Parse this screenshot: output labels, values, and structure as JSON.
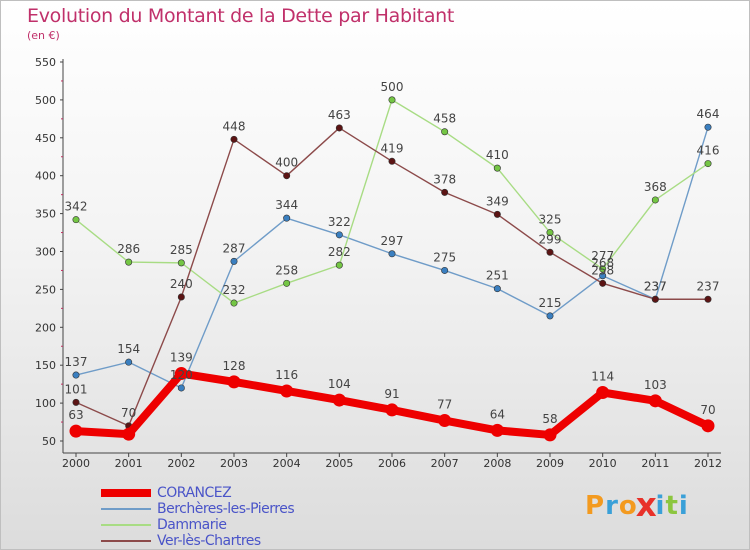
{
  "title": "Evolution du Montant de la Dette par Habitant",
  "unit": "(en €)",
  "logo": {
    "text": "Proxiti",
    "colors": [
      "#f39a1f",
      "#3aa0d8",
      "#f39a1f",
      "#e8312a",
      "#3aa0d8",
      "#8cc63f",
      "#3aa0d8"
    ]
  },
  "chart_data": {
    "type": "line",
    "x": [
      "2000",
      "2001",
      "2002",
      "2003",
      "2004",
      "2005",
      "2006",
      "2007",
      "2008",
      "2009",
      "2010",
      "2011",
      "2012"
    ],
    "ylim": [
      50,
      550
    ],
    "yticks": [
      50,
      100,
      150,
      200,
      250,
      300,
      350,
      400,
      450,
      500,
      550
    ],
    "grid": false,
    "legend_position": "bottom-left",
    "series": [
      {
        "name": "Berchères-les-Pierres",
        "color": "#6f9cc8",
        "marker": "#3a7fc0",
        "values": [
          137,
          154,
          120,
          287,
          344,
          322,
          297,
          275,
          251,
          215,
          268,
          237,
          464
        ],
        "labels": [
          "137",
          "154",
          "120",
          "287",
          "344",
          "322",
          "297",
          "275",
          "251",
          "215",
          "268",
          "237",
          "464"
        ]
      },
      {
        "name": "Dammarie",
        "color": "#a8dc84",
        "marker": "#74c644",
        "values": [
          342,
          286,
          285,
          232,
          258,
          282,
          500,
          458,
          410,
          325,
          277,
          368,
          416
        ],
        "labels": [
          "342",
          "286",
          "285",
          "232",
          "258",
          "282",
          "500",
          "458",
          "410",
          "325",
          "277",
          "368",
          "416"
        ]
      },
      {
        "name": "Ver-lès-Chartres",
        "color": "#8c4a4a",
        "marker": "#5c1414",
        "values": [
          101,
          70,
          240,
          448,
          400,
          463,
          419,
          378,
          349,
          299,
          258,
          237,
          237
        ],
        "labels": [
          "101",
          "70",
          "240",
          "448",
          "400",
          "463",
          "419",
          "378",
          "349",
          "299",
          "258",
          "237",
          "237"
        ]
      },
      {
        "name": "CORANCEZ",
        "color": "#ee0000",
        "marker": "#ee0000",
        "bold": true,
        "values": [
          63,
          59,
          139,
          128,
          116,
          104,
          91,
          77,
          64,
          58,
          114,
          103,
          70
        ],
        "labels": [
          "63",
          "",
          "139",
          "128",
          "116",
          "104",
          "91",
          "77",
          "64",
          "58",
          "114",
          "103",
          "70"
        ]
      }
    ],
    "legend": [
      "CORANCEZ",
      "Berchères-les-Pierres",
      "Dammarie",
      "Ver-lès-Chartres"
    ]
  }
}
